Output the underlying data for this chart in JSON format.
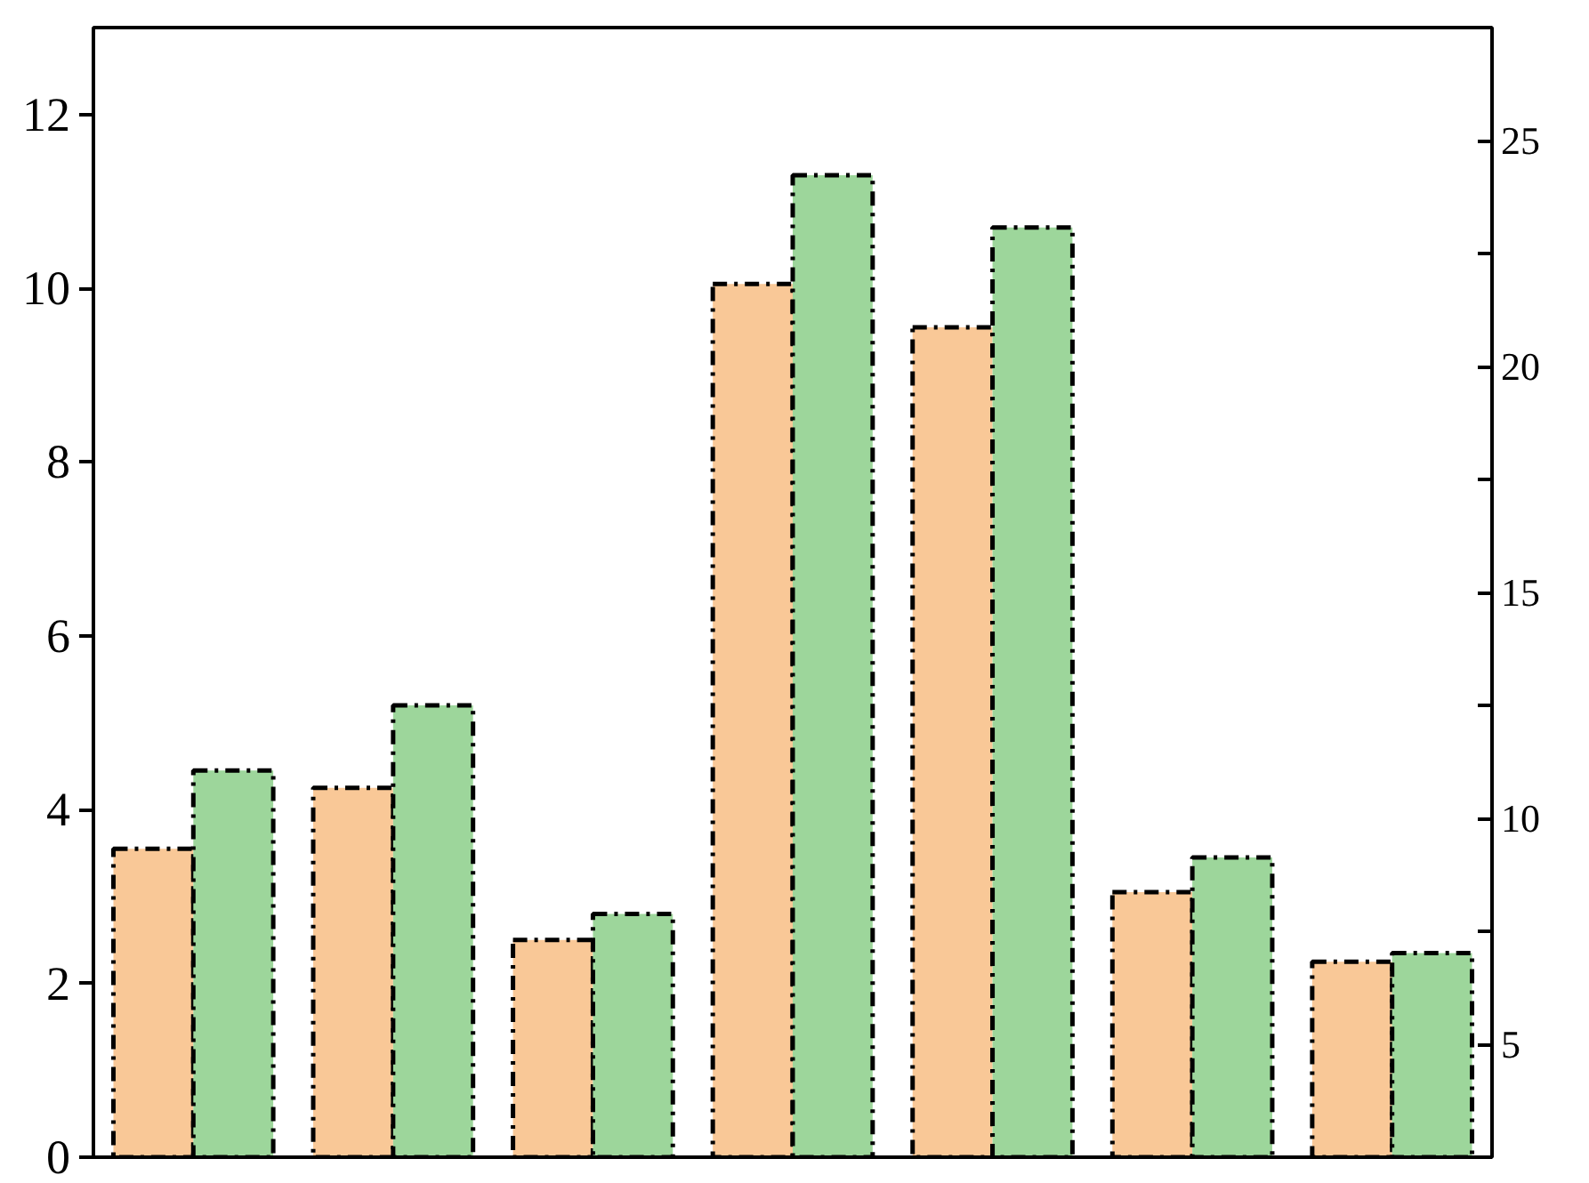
{
  "chart_data": {
    "type": "bar",
    "categories": [
      null,
      null,
      null,
      null,
      null,
      null,
      null
    ],
    "series": [
      {
        "color": "#f9c897",
        "values": [
          3.55,
          4.25,
          2.5,
          10.05,
          9.55,
          3.05,
          2.25
        ]
      },
      {
        "color": "#9dd69b",
        "values": [
          4.45,
          5.2,
          2.8,
          11.3,
          10.7,
          3.45,
          2.35
        ]
      }
    ],
    "ylim": [
      0,
      13
    ],
    "yticks": [
      0,
      2,
      4,
      6,
      8,
      10,
      12
    ],
    "y2lim": [
      2.5,
      27.5
    ],
    "y2ticks": [
      5,
      {
        "value": 7.5,
        "label": null
      },
      10,
      {
        "value": 12.5,
        "label": null
      },
      15,
      {
        "value": 17.5,
        "label": null
      },
      20,
      {
        "value": 22.5,
        "label": null
      },
      25
    ],
    "line_style": "dashdot",
    "grid": false
  }
}
